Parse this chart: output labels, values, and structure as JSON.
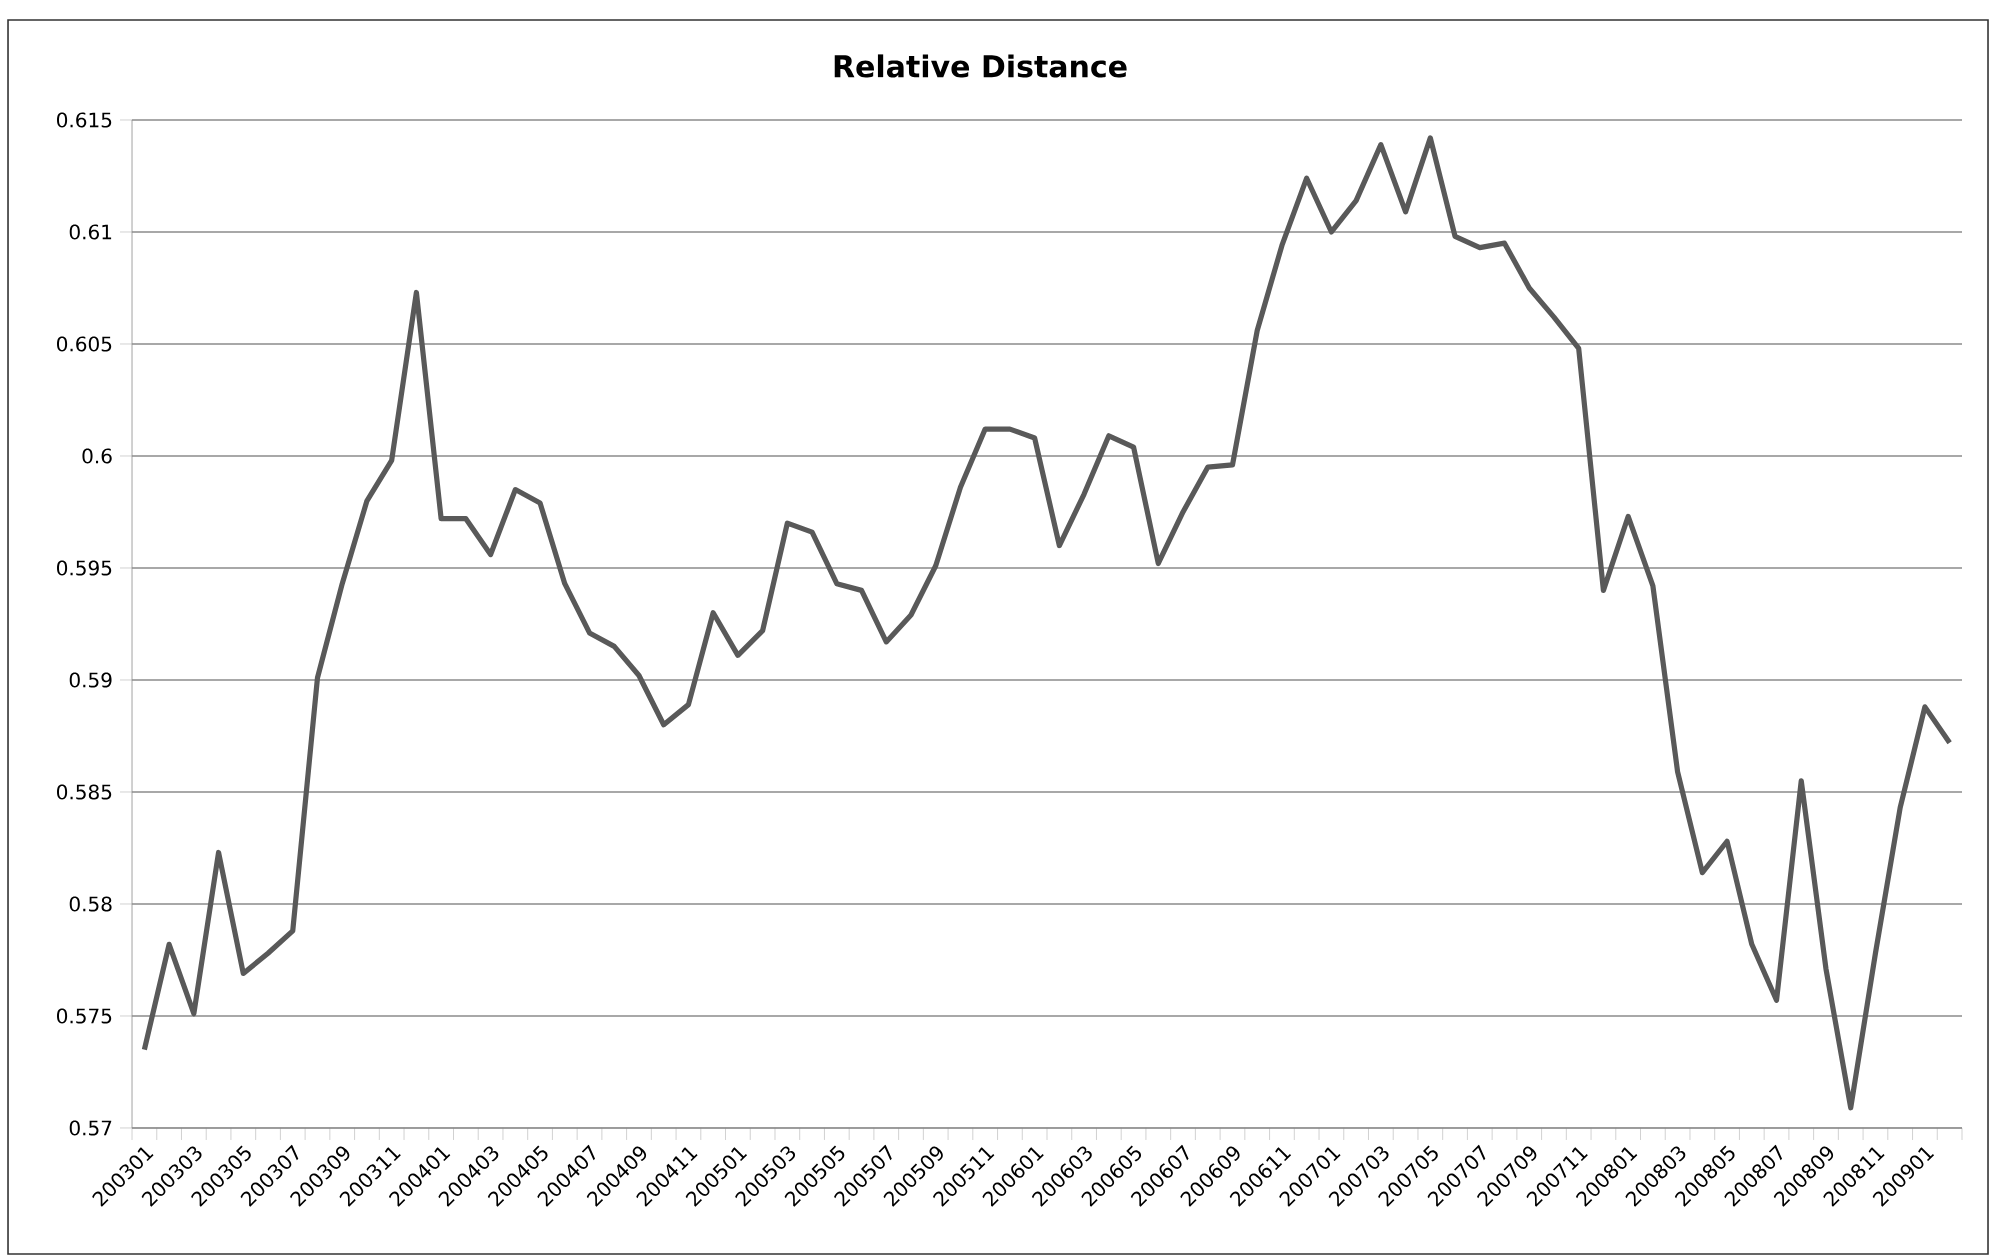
{
  "chart_data": {
    "type": "line",
    "title": "Relative Distance",
    "categories": [
      "200301",
      null,
      "200303",
      null,
      "200305",
      null,
      "200307",
      null,
      "200309",
      null,
      "200311",
      null,
      "200401",
      null,
      "200403",
      null,
      "200405",
      null,
      "200407",
      null,
      "200409",
      null,
      "200411",
      null,
      "200501",
      null,
      "200503",
      null,
      "200505",
      null,
      "200507",
      null,
      "200509",
      null,
      "200511",
      null,
      "200601",
      null,
      "200603",
      null,
      "200605",
      null,
      "200607",
      null,
      "200609",
      null,
      "200611",
      null,
      "200701",
      null,
      "200703",
      null,
      "200705",
      null,
      "200707",
      null,
      "200709",
      null,
      "200711",
      null,
      "200801",
      null,
      "200803",
      null,
      "200805",
      null,
      "200807",
      null,
      "200809",
      null,
      "200811",
      null,
      "200901",
      null
    ],
    "values": [
      0.5735,
      0.5782,
      0.5751,
      0.5823,
      0.5769,
      0.5778,
      0.5788,
      0.5901,
      0.5943,
      0.598,
      0.5998,
      0.6073,
      0.5972,
      0.5972,
      0.5956,
      0.5985,
      0.5979,
      0.5943,
      0.5921,
      0.5915,
      0.5902,
      0.588,
      0.5889,
      0.593,
      0.5911,
      0.5922,
      0.597,
      0.5966,
      0.5943,
      0.594,
      0.5917,
      0.5929,
      0.5951,
      0.5986,
      0.6012,
      0.6012,
      0.6008,
      0.596,
      0.5983,
      0.6009,
      0.6004,
      0.5952,
      0.5975,
      0.5995,
      0.5996,
      0.6056,
      0.6094,
      0.6124,
      0.61,
      0.6114,
      0.6139,
      0.6109,
      0.6142,
      0.6098,
      0.6093,
      0.6095,
      0.6075,
      0.6062,
      0.6048,
      0.594,
      0.5973,
      0.5942,
      0.5859,
      0.5814,
      0.5828,
      0.5782,
      0.5757,
      0.5855,
      0.5771,
      0.5709,
      0.5778,
      0.5843,
      0.5888,
      0.5872
    ],
    "color": "#595959",
    "ylim": [
      0.57,
      0.615
    ],
    "yticks": [
      0.57,
      0.575,
      0.58,
      0.585,
      0.59,
      0.595,
      0.6,
      0.605,
      0.61,
      0.615
    ],
    "grid": "y",
    "marker": "none",
    "line_style": "solid"
  }
}
